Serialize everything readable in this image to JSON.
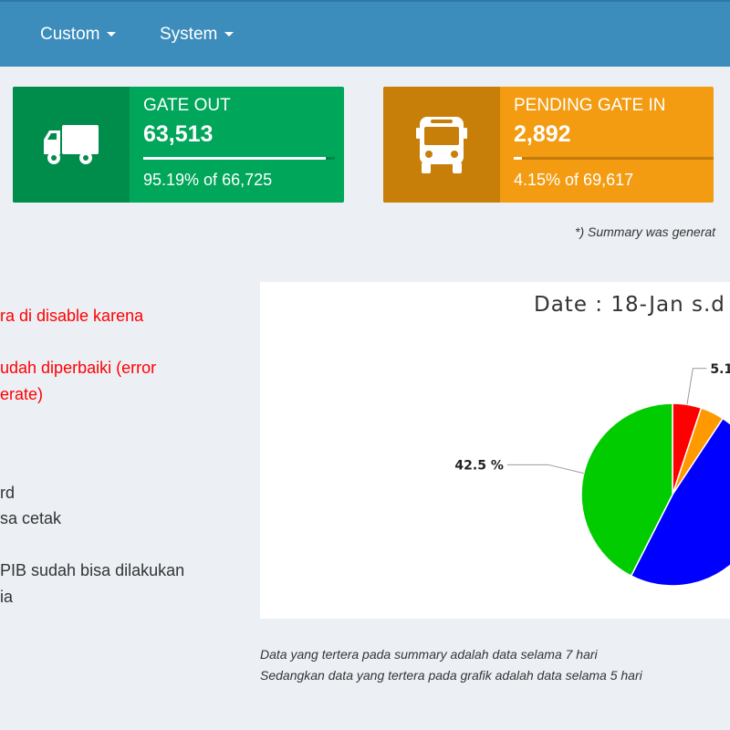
{
  "nav": {
    "items": [
      {
        "label": "Custom"
      },
      {
        "label": "System"
      }
    ]
  },
  "info_boxes": {
    "gate_out": {
      "title": "GATE OUT",
      "number": "63,513",
      "desc": "95.19% of 66,725",
      "progress": 0.9519,
      "icon": "truck-icon",
      "color": "#00a65a"
    },
    "pending_gate_in": {
      "title": "PENDING GATE IN",
      "number": "2,892",
      "desc": "4.15% of 69,617",
      "progress": 0.0415,
      "icon": "bus-icon",
      "color": "#f39c12"
    }
  },
  "summary_note": "*) Summary was generat",
  "notes": [
    {
      "text": "ra di disable karena",
      "color": "red"
    },
    {
      "text": "udah diperbaiki (error",
      "color": "red"
    },
    {
      "text": "erate)",
      "color": "red"
    },
    {
      "text": "rd",
      "color": "dark"
    },
    {
      "text": "sa cetak",
      "color": "dark"
    },
    {
      "text": "PIB sudah bisa dilakukan",
      "color": "dark"
    },
    {
      "text": "ia",
      "color": "dark"
    }
  ],
  "chart_data": {
    "type": "pie",
    "title": "Date : 18-Jan s.d",
    "slices": [
      {
        "value": 5.1,
        "color": "#ff0000",
        "label": "5.1"
      },
      {
        "value": 4.2,
        "color": "#ff9900",
        "label": ""
      },
      {
        "value": 48.2,
        "color": "#0000ff",
        "label": ""
      },
      {
        "value": 42.5,
        "color": "#00cc00",
        "label": "42.5 %"
      }
    ]
  },
  "footer": {
    "line1": "Data yang tertera pada summary adalah data selama 7 hari",
    "line2": "Sedangkan data yang tertera pada grafik adalah data selama 5 hari"
  }
}
